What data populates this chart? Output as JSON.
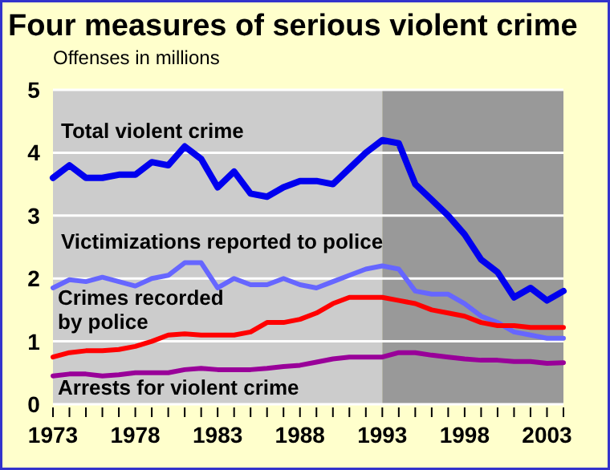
{
  "chart_data": {
    "type": "line",
    "title": "Four measures of serious violent crime",
    "ylabel": "Offenses in millions",
    "x": [
      1973,
      1974,
      1975,
      1976,
      1977,
      1978,
      1979,
      1980,
      1981,
      1982,
      1983,
      1984,
      1985,
      1986,
      1987,
      1988,
      1989,
      1990,
      1991,
      1992,
      1993,
      1994,
      1995,
      1996,
      1997,
      1998,
      1999,
      2000,
      2001,
      2002,
      2003,
      2004
    ],
    "series": [
      {
        "name": "Total violent crime",
        "color": "#0000ee",
        "values": [
          3.6,
          3.8,
          3.6,
          3.6,
          3.65,
          3.65,
          3.85,
          3.8,
          4.1,
          3.9,
          3.45,
          3.7,
          3.35,
          3.3,
          3.45,
          3.55,
          3.55,
          3.5,
          3.75,
          4.0,
          4.2,
          4.15,
          3.5,
          3.25,
          3.0,
          2.7,
          2.3,
          2.1,
          1.7,
          1.85,
          1.65,
          1.8
        ]
      },
      {
        "name": "Victimizations reported to police",
        "color": "#6666ff",
        "values": [
          1.85,
          1.98,
          1.95,
          2.02,
          1.95,
          1.88,
          2.0,
          2.05,
          2.25,
          2.25,
          1.85,
          2.0,
          1.9,
          1.9,
          2.0,
          1.9,
          1.85,
          1.95,
          2.05,
          2.15,
          2.2,
          2.15,
          1.8,
          1.75,
          1.75,
          1.6,
          1.4,
          1.3,
          1.15,
          1.1,
          1.05,
          1.05
        ]
      },
      {
        "name": "Crimes recorded by police",
        "color": "#ff0000",
        "values": [
          0.75,
          0.82,
          0.85,
          0.85,
          0.87,
          0.92,
          1.0,
          1.1,
          1.12,
          1.1,
          1.1,
          1.1,
          1.15,
          1.3,
          1.3,
          1.35,
          1.45,
          1.6,
          1.7,
          1.7,
          1.7,
          1.65,
          1.6,
          1.5,
          1.45,
          1.4,
          1.3,
          1.25,
          1.25,
          1.22,
          1.22,
          1.22
        ]
      },
      {
        "name": "Arrests for violent crime",
        "color": "#990099",
        "values": [
          0.45,
          0.48,
          0.48,
          0.45,
          0.47,
          0.5,
          0.5,
          0.5,
          0.55,
          0.57,
          0.55,
          0.55,
          0.55,
          0.57,
          0.6,
          0.62,
          0.67,
          0.72,
          0.75,
          0.75,
          0.75,
          0.82,
          0.82,
          0.78,
          0.75,
          0.72,
          0.7,
          0.7,
          0.68,
          0.68,
          0.65,
          0.66
        ]
      }
    ],
    "xlim": [
      1973,
      2004
    ],
    "xticks": [
      1973,
      {
        "value": 1974,
        "label": null
      },
      {
        "value": 1975,
        "label": null
      },
      {
        "value": 1976,
        "label": null
      },
      {
        "value": 1977,
        "label": null
      },
      1978,
      {
        "value": 1979,
        "label": null
      },
      {
        "value": 1980,
        "label": null
      },
      {
        "value": 1981,
        "label": null
      },
      {
        "value": 1982,
        "label": null
      },
      1983,
      {
        "value": 1984,
        "label": null
      },
      {
        "value": 1985,
        "label": null
      },
      {
        "value": 1986,
        "label": null
      },
      {
        "value": 1987,
        "label": null
      },
      1988,
      {
        "value": 1989,
        "label": null
      },
      {
        "value": 1990,
        "label": null
      },
      {
        "value": 1991,
        "label": null
      },
      {
        "value": 1992,
        "label": null
      },
      1993,
      {
        "value": 1994,
        "label": null
      },
      {
        "value": 1995,
        "label": null
      },
      {
        "value": 1996,
        "label": null
      },
      {
        "value": 1997,
        "label": null
      },
      1998,
      {
        "value": 1999,
        "label": null
      },
      {
        "value": 2000,
        "label": null
      },
      {
        "value": 2001,
        "label": null
      },
      {
        "value": 2002,
        "label": null
      },
      2003,
      {
        "value": 2004,
        "label": null
      }
    ],
    "ylim": [
      0,
      5
    ],
    "yticks": [
      0,
      1,
      2,
      3,
      4,
      5
    ],
    "bands": [
      {
        "axis": "x",
        "from": 1973,
        "to": 1993,
        "color": "#cccccc"
      },
      {
        "axis": "x",
        "from": 1993,
        "to": 2004,
        "color": "#999999"
      }
    ],
    "grid": "y",
    "marker": "none",
    "line_style": "solid"
  }
}
